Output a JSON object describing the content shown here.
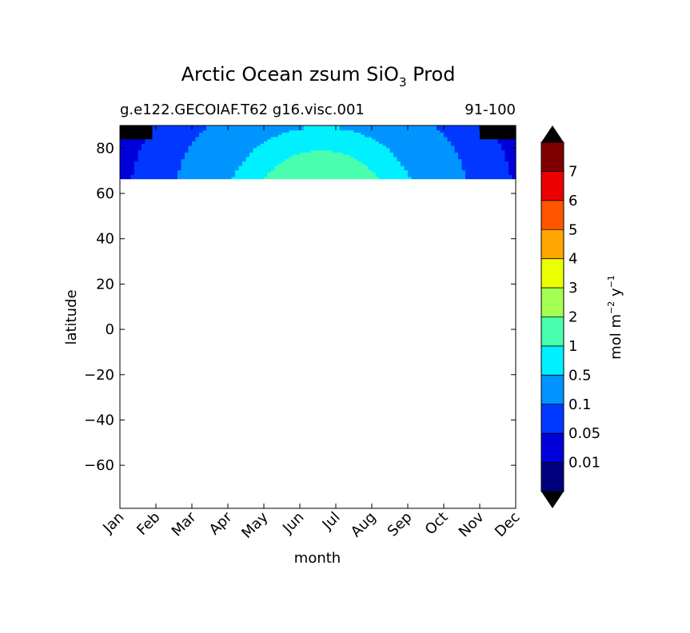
{
  "chart_data": {
    "type": "heatmap",
    "title_main": "Arctic Ocean zsum SiO",
    "title_sub": "3",
    "title_suffix": " Prod",
    "subtitle_left": "g.e122.GECOIAF.T62 g16.visc.001",
    "subtitle_right": "91-100",
    "xlabel": "month",
    "ylabel": "latitude",
    "x_ticks": [
      "Jan",
      "Feb",
      "Mar",
      "Apr",
      "May",
      "Jun",
      "Jul",
      "Aug",
      "Sep",
      "Oct",
      "Nov",
      "Dec"
    ],
    "xlim": [
      0,
      11
    ],
    "ylim": [
      -79,
      90
    ],
    "y_ticks": [
      80,
      60,
      40,
      20,
      0,
      -20,
      -40,
      -60
    ],
    "y_tick_labels": [
      "80",
      "60",
      "40",
      "20",
      "0",
      "−20",
      "−40",
      "−60"
    ],
    "data_lat_range": [
      66.5,
      90
    ],
    "colorbar": {
      "label_base": "mol m",
      "label_exp1": "−2",
      "label_mid": " y",
      "label_exp2": "−1",
      "levels": [
        0,
        0.01,
        0.05,
        0.1,
        0.5,
        1,
        2,
        3,
        4,
        5,
        6,
        7,
        8
      ],
      "tick_labels": [
        "0.01",
        "0.05",
        "0.1",
        "0.5",
        "1",
        "2",
        "3",
        "4",
        "5",
        "6",
        "7"
      ],
      "colors": [
        "#00007f",
        "#0000db",
        "#0038ff",
        "#0094ff",
        "#00f0ff",
        "#49ffad",
        "#a4ff53",
        "#ecff00",
        "#ffa700",
        "#ff5500",
        "#ec0000",
        "#7f0000"
      ],
      "extend_under": "#000000",
      "extend_over": "#000000"
    },
    "grid": false
  }
}
